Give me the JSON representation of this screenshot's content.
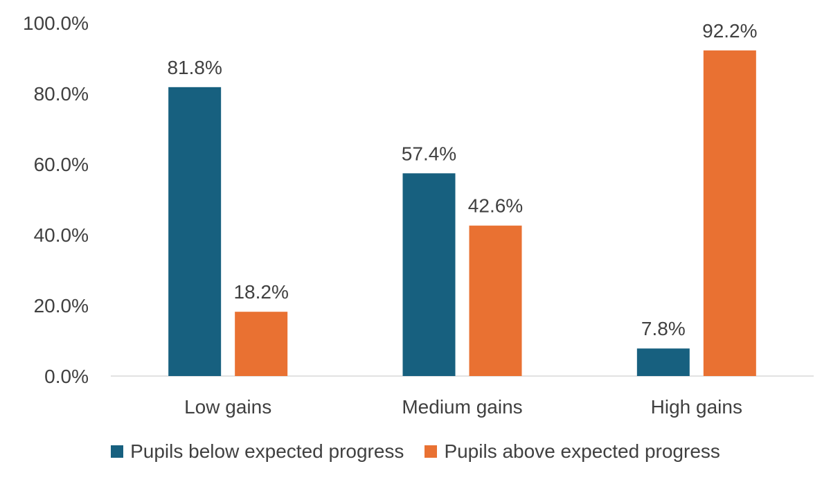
{
  "chart_data": {
    "type": "bar",
    "categories": [
      "Low gains",
      "Medium gains",
      "High gains"
    ],
    "series": [
      {
        "name": "Pupils below expected progress",
        "values": [
          81.8,
          57.4,
          7.8
        ],
        "color": "#17607f"
      },
      {
        "name": "Pupils above expected progress",
        "values": [
          18.2,
          42.6,
          92.2
        ],
        "color": "#e97132"
      }
    ],
    "value_labels": [
      [
        "81.8%",
        "57.4%",
        "7.8%"
      ],
      [
        "18.2%",
        "42.6%",
        "92.2%"
      ]
    ],
    "y_ticks": [
      "0.0%",
      "20.0%",
      "40.0%",
      "60.0%",
      "80.0%",
      "100.0%"
    ],
    "ylim": [
      0,
      100
    ],
    "grid": false,
    "legend_position": "bottom",
    "title": "",
    "xlabel": "",
    "ylabel": ""
  }
}
